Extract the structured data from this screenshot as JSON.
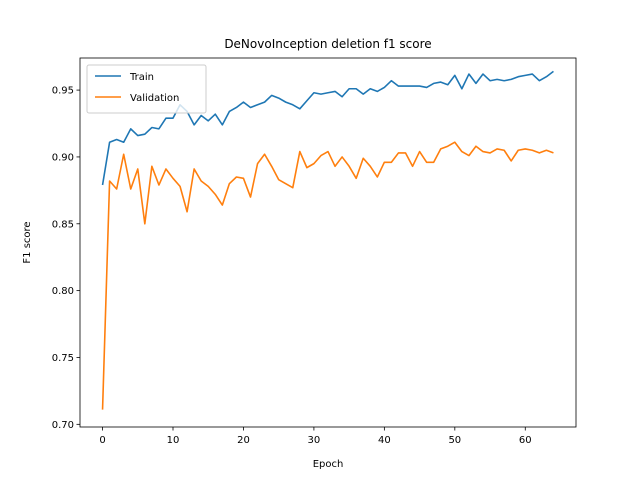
{
  "chart_data": {
    "type": "line",
    "title": "DeNovoInception deletion f1 score",
    "xlabel": "Epoch",
    "ylabel": "F1 score",
    "xlim": [
      -3.2,
      67.2
    ],
    "ylim": [
      0.698,
      0.974
    ],
    "xticks": [
      0,
      10,
      20,
      30,
      40,
      50,
      60
    ],
    "xtick_labels": [
      "0",
      "10",
      "20",
      "30",
      "40",
      "50",
      "60"
    ],
    "yticks": [
      0.7,
      0.75,
      0.8,
      0.85,
      0.9,
      0.95
    ],
    "ytick_labels": [
      "0.70",
      "0.75",
      "0.80",
      "0.85",
      "0.90",
      "0.95"
    ],
    "grid": false,
    "legend_position": "top-left",
    "x": [
      0,
      1,
      2,
      3,
      4,
      5,
      6,
      7,
      8,
      9,
      10,
      11,
      12,
      13,
      14,
      15,
      16,
      17,
      18,
      19,
      20,
      21,
      22,
      23,
      24,
      25,
      26,
      27,
      28,
      29,
      30,
      31,
      32,
      33,
      34,
      35,
      36,
      37,
      38,
      39,
      40,
      41,
      42,
      43,
      44,
      45,
      46,
      47,
      48,
      49,
      50,
      51,
      52,
      53,
      54,
      55,
      56,
      57,
      58,
      59,
      60,
      61,
      62,
      63,
      64
    ],
    "series": [
      {
        "name": "Train",
        "color": "#1f77b4",
        "values": [
          0.879,
          0.911,
          0.913,
          0.911,
          0.921,
          0.916,
          0.917,
          0.922,
          0.921,
          0.929,
          0.929,
          0.939,
          0.934,
          0.924,
          0.931,
          0.927,
          0.932,
          0.924,
          0.934,
          0.937,
          0.941,
          0.937,
          0.939,
          0.941,
          0.946,
          0.944,
          0.941,
          0.939,
          0.936,
          0.942,
          0.948,
          0.947,
          0.948,
          0.949,
          0.945,
          0.951,
          0.951,
          0.947,
          0.951,
          0.949,
          0.952,
          0.957,
          0.953,
          0.953,
          0.953,
          0.953,
          0.952,
          0.955,
          0.956,
          0.954,
          0.961,
          0.951,
          0.962,
          0.955,
          0.962,
          0.957,
          0.958,
          0.957,
          0.958,
          0.96,
          0.961,
          0.962,
          0.957,
          0.96,
          0.964
        ]
      },
      {
        "name": "Validation",
        "color": "#ff7f0e",
        "values": [
          0.711,
          0.882,
          0.876,
          0.902,
          0.876,
          0.891,
          0.85,
          0.893,
          0.879,
          0.891,
          0.884,
          0.878,
          0.859,
          0.891,
          0.882,
          0.878,
          0.872,
          0.864,
          0.88,
          0.885,
          0.884,
          0.87,
          0.895,
          0.902,
          0.893,
          0.883,
          0.88,
          0.877,
          0.904,
          0.892,
          0.895,
          0.901,
          0.904,
          0.893,
          0.9,
          0.893,
          0.884,
          0.899,
          0.893,
          0.885,
          0.896,
          0.896,
          0.903,
          0.903,
          0.893,
          0.904,
          0.896,
          0.896,
          0.906,
          0.908,
          0.911,
          0.904,
          0.901,
          0.908,
          0.904,
          0.903,
          0.906,
          0.905,
          0.897,
          0.905,
          0.906,
          0.905,
          0.903,
          0.905,
          0.903
        ]
      }
    ]
  }
}
